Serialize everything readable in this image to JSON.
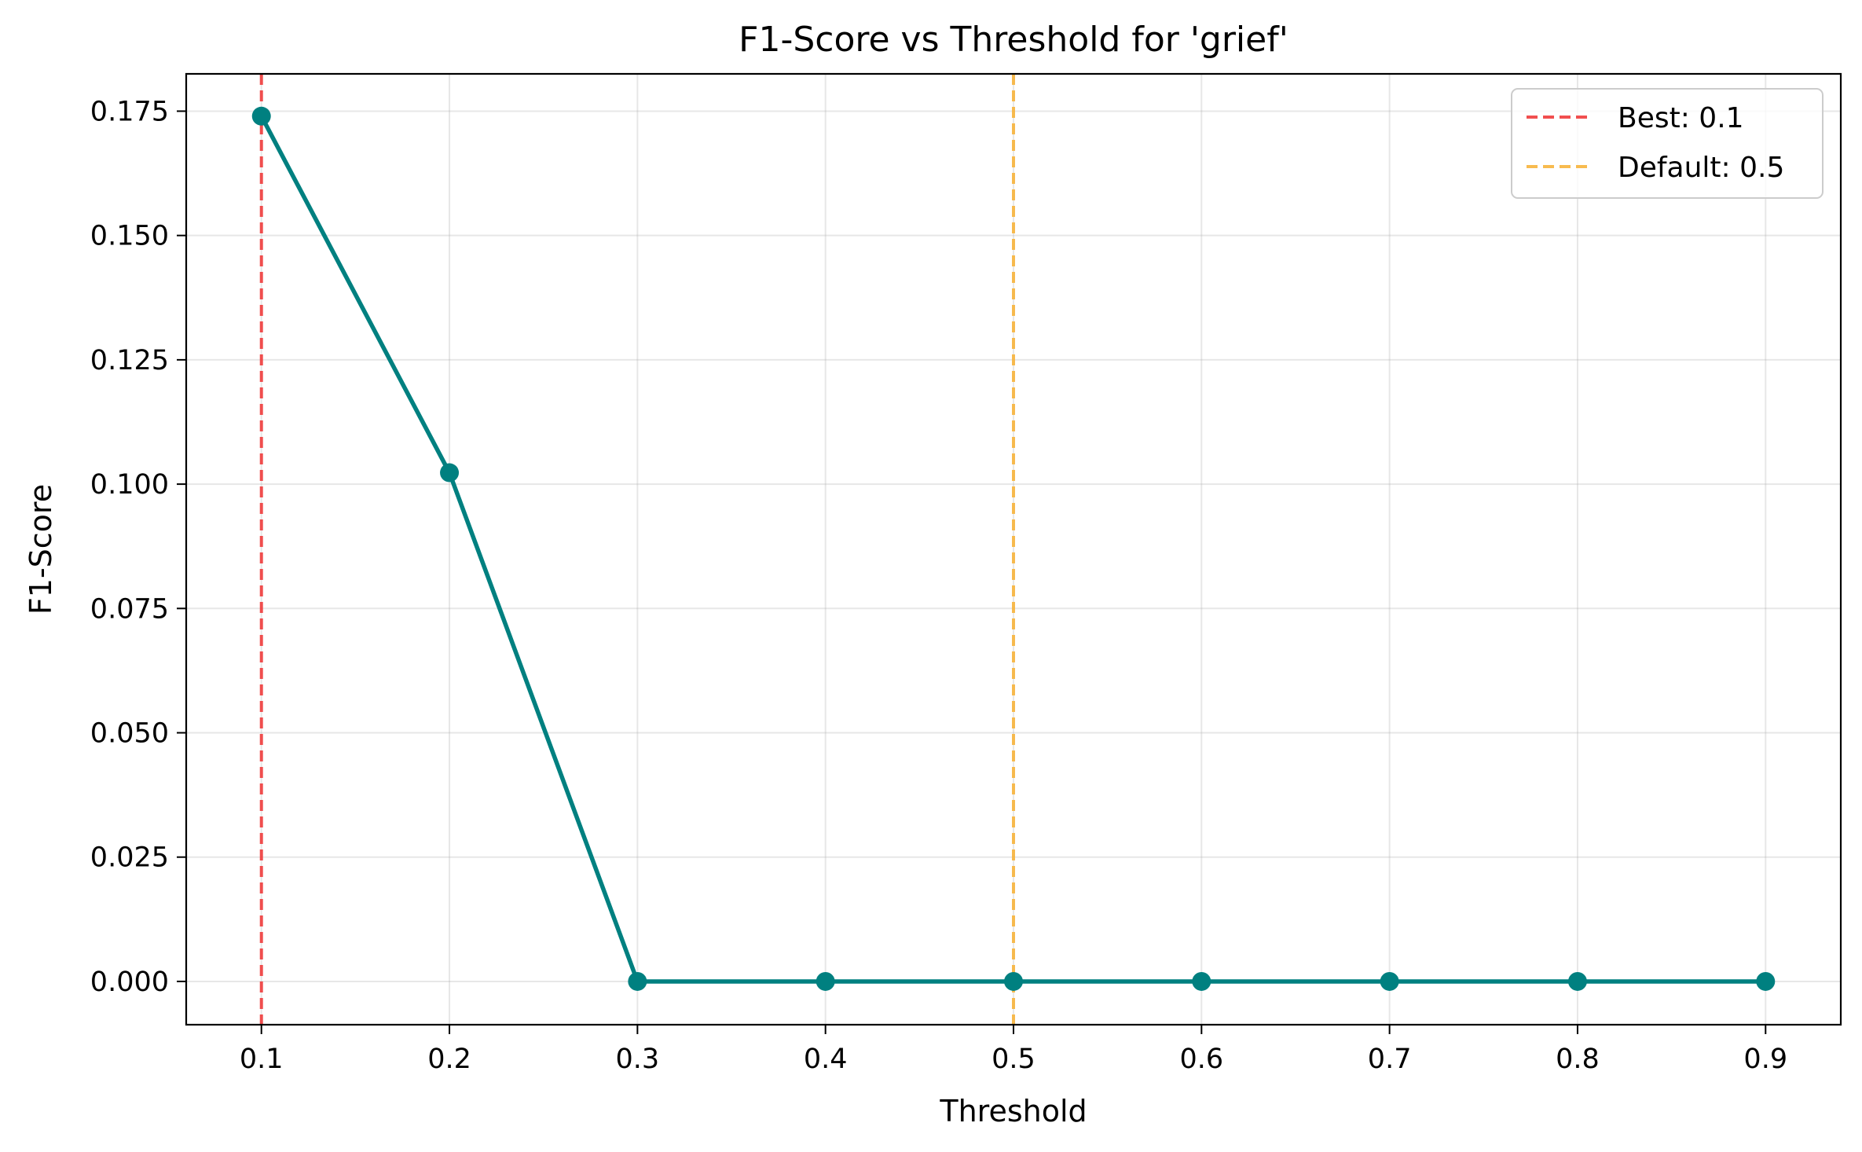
{
  "chart_data": {
    "type": "line",
    "title": "F1-Score vs Threshold for 'grief'",
    "xlabel": "Threshold",
    "ylabel": "F1-Score",
    "xlim": [
      0.06,
      0.94
    ],
    "ylim": [
      -0.0087,
      0.1825
    ],
    "xticks": [
      0.1,
      0.2,
      0.3,
      0.4,
      0.5,
      0.6,
      0.7,
      0.8,
      0.9
    ],
    "xtick_labels": [
      "0.1",
      "0.2",
      "0.3",
      "0.4",
      "0.5",
      "0.6",
      "0.7",
      "0.8",
      "0.9"
    ],
    "yticks": [
      0.0,
      0.025,
      0.05,
      0.075,
      0.1,
      0.125,
      0.15,
      0.175
    ],
    "ytick_labels": [
      "0.000",
      "0.025",
      "0.050",
      "0.075",
      "0.100",
      "0.125",
      "0.150",
      "0.175"
    ],
    "grid": true,
    "legend_position": "top-right",
    "series": [
      {
        "x": [
          0.1,
          0.2,
          0.3,
          0.4,
          0.5,
          0.6,
          0.7,
          0.8,
          0.9
        ],
        "values": [
          0.174,
          0.1023,
          0.0,
          0.0,
          0.0,
          0.0,
          0.0,
          0.0,
          0.0
        ],
        "color": "#008080",
        "marker": "circle"
      }
    ],
    "reference_lines": [
      {
        "name": "Best: 0.1",
        "x": 0.1,
        "color": "#f03c3c",
        "style": "dashed"
      },
      {
        "name": "Default: 0.5",
        "x": 0.5,
        "color": "#f7b43c",
        "style": "dashed"
      }
    ]
  }
}
